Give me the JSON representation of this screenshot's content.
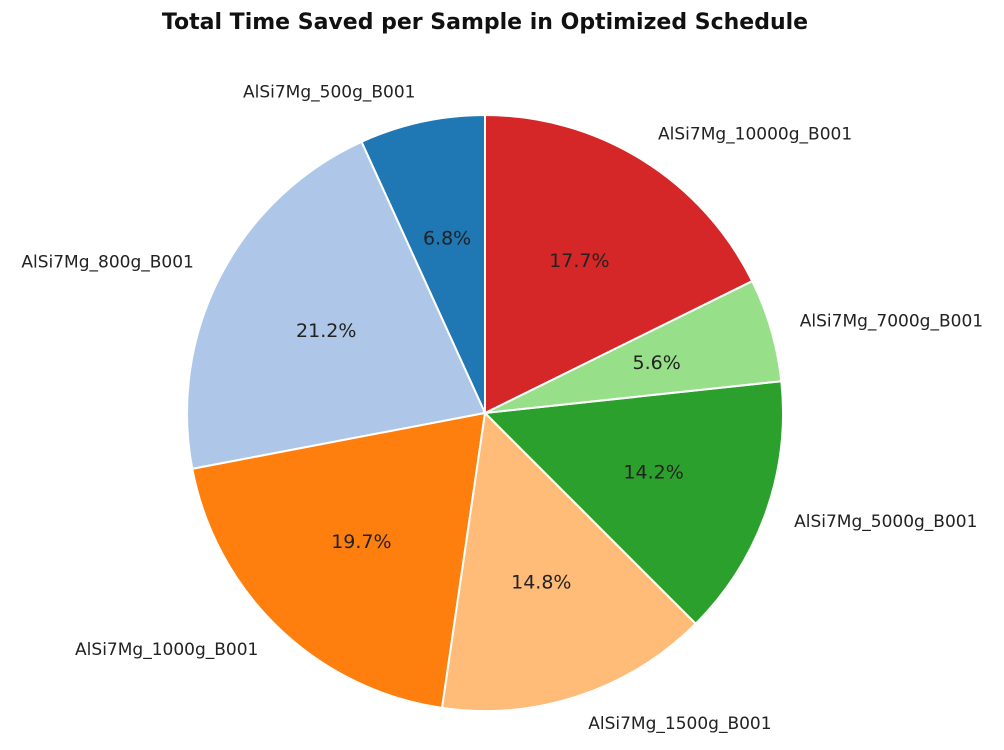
{
  "chart_data": {
    "type": "pie",
    "title": "Total Time Saved per Sample in Optimized Schedule",
    "start_angle_deg": 90,
    "direction": "counterclockwise",
    "slices": [
      {
        "label": "AlSi7Mg_500g_B001",
        "value": 6.8,
        "pct_label": "6.8%",
        "color": "#1f77b4"
      },
      {
        "label": "AlSi7Mg_800g_B001",
        "value": 21.2,
        "pct_label": "21.2%",
        "color": "#aec7e8"
      },
      {
        "label": "AlSi7Mg_1000g_B001",
        "value": 19.7,
        "pct_label": "19.7%",
        "color": "#ff7f0e"
      },
      {
        "label": "AlSi7Mg_1500g_B001",
        "value": 14.8,
        "pct_label": "14.8%",
        "color": "#ffbb78"
      },
      {
        "label": "AlSi7Mg_5000g_B001",
        "value": 14.2,
        "pct_label": "14.2%",
        "color": "#2ca02c"
      },
      {
        "label": "AlSi7Mg_7000g_B001",
        "value": 5.6,
        "pct_label": "5.6%",
        "color": "#98df8a"
      },
      {
        "label": "AlSi7Mg_10000g_B001",
        "value": 17.7,
        "pct_label": "17.7%",
        "color": "#d62728"
      }
    ]
  }
}
